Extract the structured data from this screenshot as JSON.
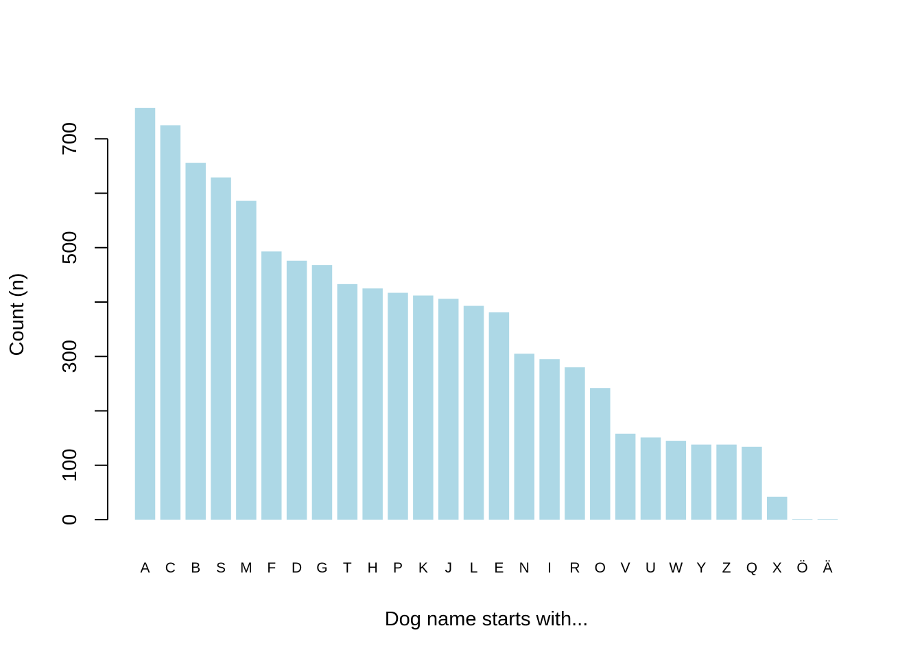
{
  "chart_data": {
    "type": "bar",
    "title": "",
    "xlabel": "Dog name starts with...",
    "ylabel": "Count (n)",
    "ylim": [
      0,
      760
    ],
    "y_ticks": [
      0,
      100,
      200,
      300,
      400,
      500,
      600,
      700
    ],
    "y_tick_labels": [
      "0",
      "100",
      "",
      "300",
      "",
      "500",
      "",
      "700"
    ],
    "grid": false,
    "legend": "none",
    "bar_color": "#ADD8E6",
    "categories": [
      "A",
      "C",
      "B",
      "S",
      "M",
      "F",
      "D",
      "G",
      "T",
      "H",
      "P",
      "K",
      "J",
      "L",
      "E",
      "N",
      "I",
      "R",
      "O",
      "V",
      "U",
      "W",
      "Y",
      "Z",
      "Q",
      "X",
      "Ö",
      "Ä"
    ],
    "values": [
      757,
      725,
      656,
      629,
      586,
      493,
      476,
      468,
      433,
      425,
      417,
      412,
      406,
      393,
      381,
      305,
      295,
      280,
      242,
      158,
      151,
      145,
      138,
      138,
      134,
      42,
      1,
      1
    ]
  }
}
